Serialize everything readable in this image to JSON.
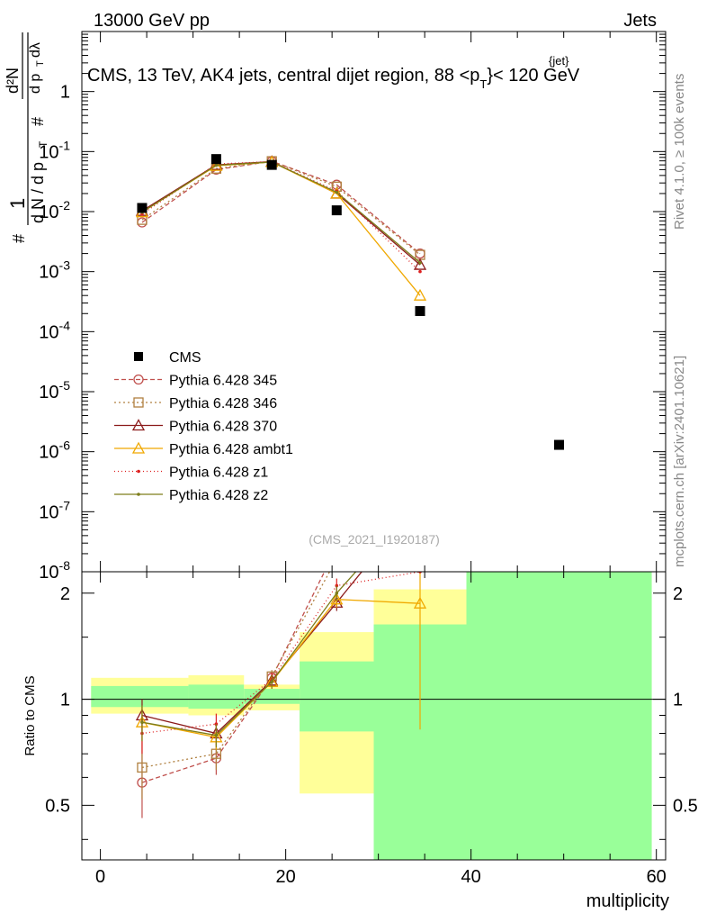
{
  "header": {
    "energy": "13000 GeV pp",
    "category": "Jets"
  },
  "side_labels": {
    "rivet": "Rivet 4.1.0, ≥ 100k events",
    "mcplots": "mcplots.cern.ch [arXiv:2401.10621]"
  },
  "chart_data": {
    "type": "line",
    "title": "CMS, 13 TeV, AK4 jets, central dijet region, 88 <p_T^{jet}< 120 GeV",
    "title_parts": {
      "prefix": "CMS, 13 TeV, AK4 jets, central dijet region, 88 <p",
      "sub": "T",
      "sup": "{jet}",
      "suffix": "}< 120 GeV"
    },
    "ylabel_parts": {
      "one": "1",
      "hash": "#",
      "dN": "d N / d p",
      "T": "T",
      "d2N": "d²N",
      "dpT": "d p",
      "dlambda": "dλ"
    },
    "analysis_id": "(CMS_2021_I1920187)",
    "xlabel": "multiplicity",
    "ratio_ylabel": "Ratio to CMS",
    "xlim": [
      -2,
      61
    ],
    "ylim": [
      1e-08,
      10
    ],
    "ratio_ylim": [
      0.35,
      2.3
    ],
    "x_ticks": [
      0,
      20,
      40,
      60
    ],
    "x_tick_labels": [
      "0",
      "20",
      "40",
      "60"
    ],
    "y_ticks": [
      {
        "exp": "-8",
        "value": 1e-08
      },
      {
        "exp": "-7",
        "value": 1e-07
      },
      {
        "exp": "-6",
        "value": 1e-06
      },
      {
        "exp": "-5",
        "value": 1e-05
      },
      {
        "exp": "-4",
        "value": 0.0001
      },
      {
        "exp": "-3",
        "value": 0.001
      },
      {
        "exp": "-2",
        "value": 0.01
      },
      {
        "exp": "-1",
        "value": 0.1
      },
      {
        "exp": "",
        "value": 1,
        "plain": "1"
      }
    ],
    "ratio_ticks": [
      {
        "value": 0.5,
        "label": "0.5"
      },
      {
        "value": 1,
        "label": "1"
      },
      {
        "value": 2,
        "label": "2"
      }
    ],
    "data": {
      "name": "CMS",
      "x": [
        4.5,
        12.5,
        18.5,
        25.5,
        34.5,
        49.5
      ],
      "y": [
        0.0115,
        0.075,
        0.06,
        0.0105,
        0.00022,
        1.3e-06
      ]
    },
    "bins": [
      {
        "lo": -1,
        "hi": 9.5,
        "g": [
          0.95,
          1.09
        ],
        "y": [
          0.91,
          1.15
        ]
      },
      {
        "lo": 9.5,
        "hi": 15.5,
        "g": [
          0.94,
          1.1
        ],
        "y": [
          0.9,
          1.17
        ]
      },
      {
        "lo": 15.5,
        "hi": 21.5,
        "g": [
          0.97,
          1.07
        ],
        "y": [
          0.93,
          1.1
        ]
      },
      {
        "lo": 21.5,
        "hi": 29.5,
        "g": [
          0.81,
          1.28
        ],
        "y": [
          0.54,
          1.55
        ]
      },
      {
        "lo": 29.5,
        "hi": 39.5,
        "g": [
          0.35,
          1.63
        ],
        "y": [
          0.35,
          2.05
        ]
      },
      {
        "lo": 39.5,
        "hi": 59.5,
        "g": [
          0.35,
          2.3
        ],
        "y": [
          0.35,
          2.3
        ]
      }
    ],
    "series": [
      {
        "name": "Pythia 6.428 345",
        "color": "#c0504d",
        "dash": "5,3",
        "marker": "circle",
        "x": [
          4.5,
          12.5,
          18.5,
          25.5,
          34.5
        ],
        "y": [
          0.0066,
          0.05,
          0.069,
          0.028,
          0.002
        ],
        "ratio": [
          0.58,
          0.68,
          1.15,
          2.7,
          9.0
        ],
        "ratio_err": [
          0.12,
          0.07,
          0.05,
          0.15,
          0
        ]
      },
      {
        "name": "Pythia 6.428 346",
        "color": "#b08040",
        "dash": "2,3",
        "marker": "square",
        "x": [
          4.5,
          12.5,
          18.5,
          25.5,
          34.5
        ],
        "y": [
          0.0073,
          0.052,
          0.069,
          0.026,
          0.0019
        ],
        "ratio": [
          0.64,
          0.7,
          1.16,
          2.5,
          8.6
        ],
        "ratio_err": [
          0.12,
          0.07,
          0.05,
          0.15,
          0
        ]
      },
      {
        "name": "Pythia 6.428 370",
        "color": "#8b1a1a",
        "dash": "",
        "marker": "triangle",
        "x": [
          4.5,
          12.5,
          18.5,
          25.5,
          34.5
        ],
        "y": [
          0.0103,
          0.06,
          0.068,
          0.02,
          0.0013
        ],
        "ratio": [
          0.9,
          0.8,
          1.13,
          1.88,
          6.0
        ],
        "ratio_err": [
          0.1,
          0.06,
          0.05,
          0.1,
          0
        ]
      },
      {
        "name": "Pythia 6.428 ambt1",
        "color": "#f0a800",
        "dash": "",
        "marker": "triangle",
        "x": [
          4.5,
          12.5,
          18.5,
          25.5,
          34.5
        ],
        "y": [
          0.0098,
          0.058,
          0.067,
          0.02,
          0.0004
        ],
        "ratio": [
          0.86,
          0.78,
          1.12,
          1.92,
          1.87
        ],
        "ratio_err": [
          0.1,
          0.06,
          0.05,
          0.1,
          1.05
        ]
      },
      {
        "name": "Pythia 6.428 z1",
        "color": "#dd2020",
        "dash": "1,3",
        "marker": "dot",
        "x": [
          4.5,
          12.5,
          18.5,
          25.5,
          34.5
        ],
        "y": [
          0.0091,
          0.062,
          0.068,
          0.022,
          0.001
        ],
        "ratio": [
          0.8,
          0.85,
          1.14,
          2.1,
          2.3
        ],
        "ratio_err": [
          0.1,
          0.06,
          0.05,
          0.1,
          0
        ]
      },
      {
        "name": "Pythia 6.428 z2",
        "color": "#7d7d1a",
        "dash": "",
        "marker": "dot",
        "x": [
          4.5,
          12.5,
          18.5,
          25.5,
          34.5
        ],
        "y": [
          0.0098,
          0.059,
          0.067,
          0.021,
          0.0014
        ],
        "ratio": [
          0.86,
          0.79,
          1.12,
          2.0,
          6.3
        ],
        "ratio_err": [
          0.1,
          0.06,
          0.05,
          0.1,
          0
        ]
      }
    ]
  }
}
